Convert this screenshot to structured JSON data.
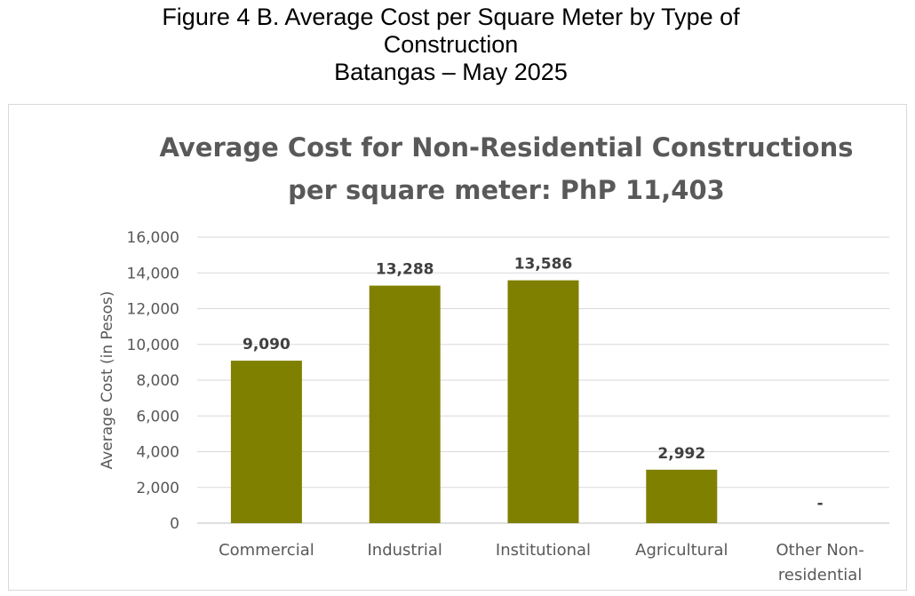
{
  "figure_title_lines": [
    "Figure 4 B. Average Cost per Square Meter by Type of",
    "Construction",
    "Batangas – May 2025"
  ],
  "chart_data": {
    "type": "bar",
    "title_lines": [
      "Average Cost for Non-Residential Constructions",
      "per square meter: PhP 11,403"
    ],
    "categories": [
      "Commercial",
      "Industrial",
      "Institutional",
      "Agricultural",
      "Other Non-residential"
    ],
    "category_label_lines": [
      [
        "Commercial"
      ],
      [
        "Industrial"
      ],
      [
        "Institutional"
      ],
      [
        "Agricultural"
      ],
      [
        "Other Non-",
        "residential"
      ]
    ],
    "values": [
      9090,
      13288,
      13586,
      2992,
      null
    ],
    "data_labels": [
      "9,090",
      "13,288",
      "13,586",
      "2,992",
      "-"
    ],
    "xlabel": "",
    "ylabel": "Average Cost (in Pesos)",
    "ylim": [
      0,
      16000
    ],
    "yticks": [
      0,
      2000,
      4000,
      6000,
      8000,
      10000,
      12000,
      14000,
      16000
    ],
    "ytick_labels": [
      "0",
      "2,000",
      "4,000",
      "6,000",
      "8,000",
      "10,000",
      "12,000",
      "14,000",
      "16,000"
    ],
    "grid": true,
    "legend": "none",
    "bar_color": "#808000",
    "text_color": "#595959"
  }
}
